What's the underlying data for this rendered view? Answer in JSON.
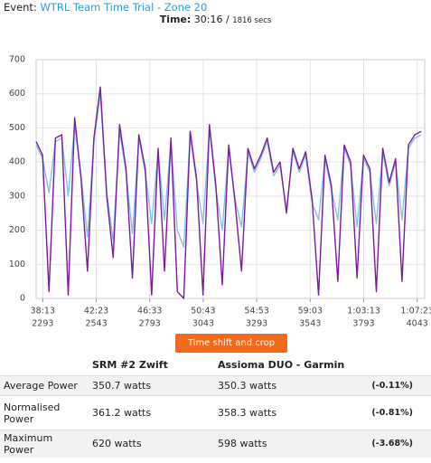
{
  "header": {
    "event_label": "Event:",
    "event_name": "WTRL Team Time Trial - Zone 20",
    "time_label": "Time:",
    "time_value": "30:16 /",
    "time_secs": "1816 secs"
  },
  "chart_data": {
    "type": "line",
    "x": [
      2262,
      2292,
      2322,
      2352,
      2382,
      2412,
      2442,
      2472,
      2502,
      2532,
      2562,
      2592,
      2622,
      2652,
      2682,
      2712,
      2742,
      2772,
      2802,
      2832,
      2862,
      2892,
      2922,
      2952,
      2982,
      3012,
      3042,
      3072,
      3102,
      3132,
      3162,
      3192,
      3222,
      3252,
      3282,
      3312,
      3342,
      3372,
      3402,
      3432,
      3462,
      3492,
      3522,
      3552,
      3582,
      3612,
      3642,
      3672,
      3702,
      3732,
      3762,
      3792,
      3822,
      3852,
      3882,
      3912,
      3942,
      3972,
      4002,
      4032,
      4062
    ],
    "series": [
      {
        "color": "#7fc4e8",
        "values": [
          450,
          410,
          310,
          460,
          470,
          300,
          510,
          360,
          180,
          460,
          598,
          310,
          170,
          490,
          370,
          190,
          470,
          370,
          220,
          430,
          230,
          460,
          200,
          150,
          480,
          340,
          220,
          500,
          320,
          200,
          440,
          290,
          210,
          430,
          370,
          410,
          460,
          360,
          390,
          260,
          430,
          370,
          420,
          280,
          230,
          410,
          320,
          230,
          440,
          390,
          210,
          410,
          370,
          220,
          430,
          330,
          400,
          230,
          440,
          470,
          480
        ]
      },
      {
        "color": "#7b1a9c",
        "values": [
          460,
          420,
          20,
          470,
          480,
          10,
          530,
          350,
          80,
          470,
          620,
          300,
          120,
          510,
          380,
          60,
          480,
          380,
          10,
          440,
          80,
          470,
          20,
          0,
          490,
          350,
          10,
          510,
          330,
          40,
          450,
          280,
          80,
          440,
          380,
          420,
          470,
          370,
          400,
          250,
          440,
          380,
          430,
          290,
          10,
          420,
          330,
          50,
          450,
          400,
          60,
          420,
          380,
          20,
          440,
          340,
          410,
          50,
          450,
          480,
          490
        ]
      }
    ],
    "xlim": [
      2262,
      4078
    ],
    "xticks": [
      {
        "value": 2293,
        "label": "38:13"
      },
      {
        "value": 2543,
        "label": "42:23"
      },
      {
        "value": 2793,
        "label": "46:33"
      },
      {
        "value": 3043,
        "label": "50:43"
      },
      {
        "value": 3293,
        "label": "54:53"
      },
      {
        "value": 3543,
        "label": "59:03"
      },
      {
        "value": 3793,
        "label": "1:03:13"
      },
      {
        "value": 4043,
        "label": "1:07:23"
      }
    ],
    "ylim": [
      0,
      700
    ],
    "yticks": [
      0,
      100,
      200,
      300,
      400,
      500,
      600,
      700
    ],
    "grid": true
  },
  "button": "Time shift and crop",
  "table": {
    "header": [
      "SRM #2 Zwift",
      "Assioma DUO - Garmin"
    ],
    "rows": [
      [
        "Average Power",
        "350.7 watts",
        "350.3 watts",
        "(-0.11%)"
      ],
      [
        "Normalised Power",
        "361.2 watts",
        "358.3 watts",
        "(-0.81%)"
      ],
      [
        "Maximum Power",
        "620 watts",
        "598 watts",
        "(-3.68%)"
      ]
    ]
  }
}
